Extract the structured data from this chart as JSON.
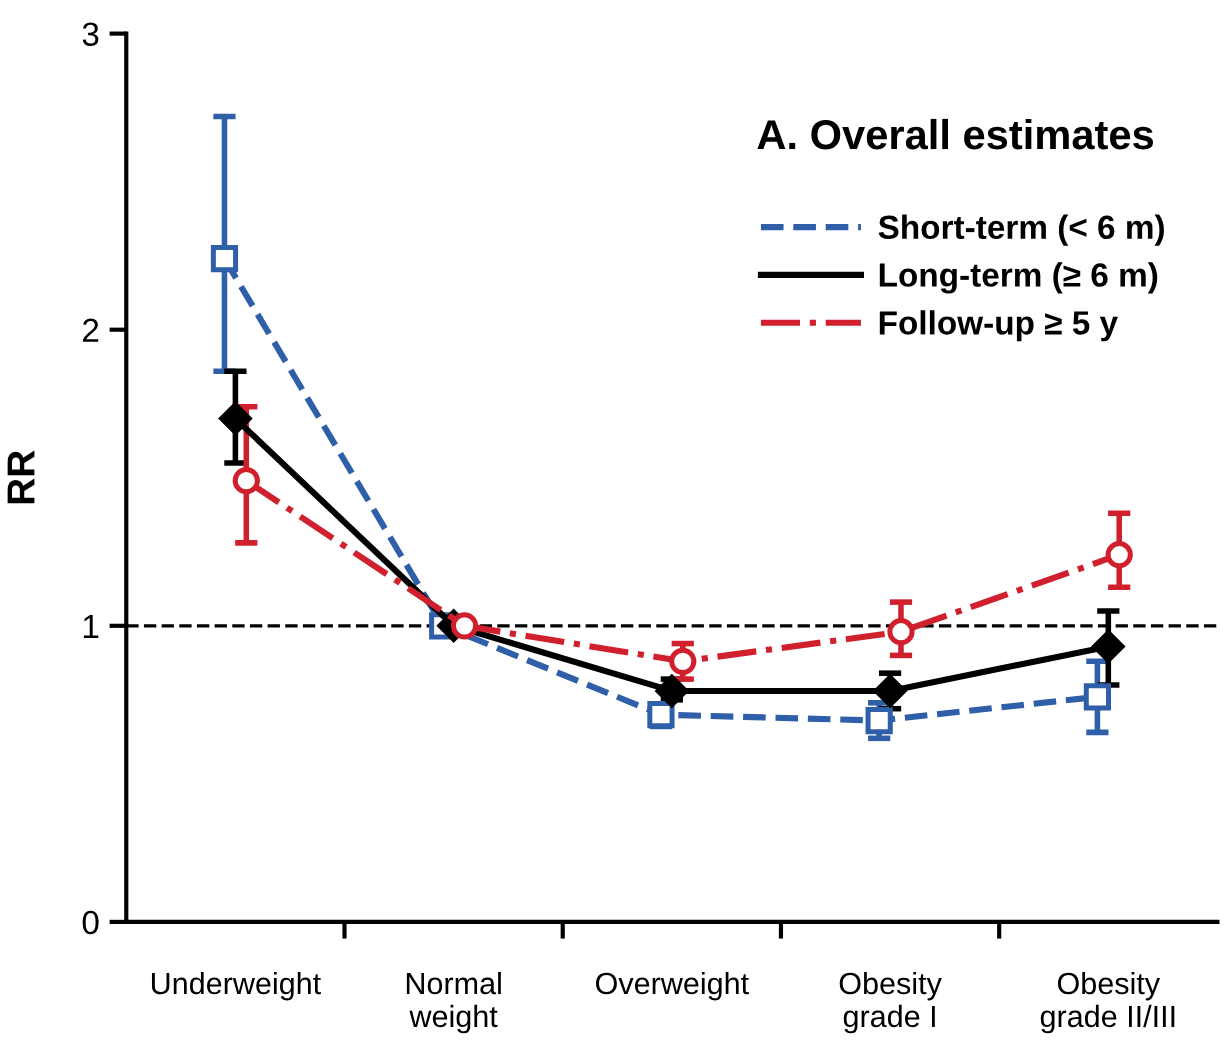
{
  "chart_data": {
    "type": "line",
    "title": "A. Overall estimates",
    "ylabel": "RR",
    "categories": [
      "Underweight",
      "Normal\nweight",
      "Overweight",
      "Obesity\ngrade I",
      "Obesity\ngrade II/III"
    ],
    "series": [
      {
        "name": "Short-term (< 6 m)",
        "color": "#2e5fa8",
        "marker": "square",
        "line_style": "dashed",
        "values": [
          2.24,
          1.0,
          0.7,
          0.68,
          0.76
        ],
        "errors": [
          [
            1.86,
            2.72
          ],
          null,
          [
            0.66,
            0.73
          ],
          [
            0.62,
            0.74
          ],
          [
            0.64,
            0.88
          ]
        ]
      },
      {
        "name": "Long-term (≥ 6 m)",
        "color": "#000000",
        "marker": "diamond",
        "line_style": "solid",
        "values": [
          1.7,
          1.0,
          0.78,
          0.78,
          0.93
        ],
        "errors": [
          [
            1.55,
            1.86
          ],
          null,
          [
            0.75,
            0.82
          ],
          [
            0.72,
            0.84
          ],
          [
            0.8,
            1.05
          ]
        ]
      },
      {
        "name": "Follow-up ≥ 5 y",
        "color": "#d0202e",
        "marker": "circle",
        "line_style": "dashdot",
        "values": [
          1.49,
          1.0,
          0.88,
          0.98,
          1.24
        ],
        "errors": [
          [
            1.28,
            1.74
          ],
          null,
          [
            0.82,
            0.94
          ],
          [
            0.9,
            1.08
          ],
          [
            1.13,
            1.38
          ]
        ]
      }
    ],
    "ylim": [
      0,
      3
    ],
    "yticks": [
      0,
      1,
      2,
      3
    ],
    "grid": false,
    "legend": "top right",
    "ref_lines": [
      {
        "axis": "y",
        "value": 1,
        "color": "#000000",
        "line_style": "dashed"
      }
    ]
  }
}
